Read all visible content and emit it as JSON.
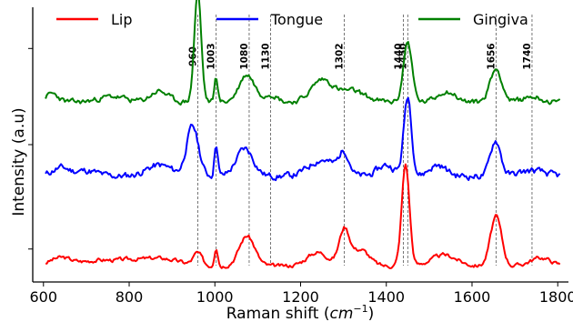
{
  "chart_data": {
    "type": "line",
    "xlabel": "Raman shift",
    "xlabel_unit_base": "cm",
    "xlabel_unit_exp": "−1",
    "ylabel": "Intensity (a.u)",
    "xlim": [
      575,
      1825
    ],
    "xticks": [
      600,
      800,
      1000,
      1200,
      1400,
      1600,
      1800
    ],
    "ylim": [
      0,
      1
    ],
    "y_ticks_unlabeled": true,
    "grid": false,
    "legend_position": "top",
    "peak_lines": [
      {
        "x": 960,
        "label": "960"
      },
      {
        "x": 1003,
        "label": "1003"
      },
      {
        "x": 1080,
        "label": "1080"
      },
      {
        "x": 1130,
        "label": "1130"
      },
      {
        "x": 1302,
        "label": "1302"
      },
      {
        "x": 1440,
        "label": "1440"
      },
      {
        "x": 1450,
        "label": "1450"
      },
      {
        "x": 1656,
        "label": "1656"
      },
      {
        "x": 1740,
        "label": "1740"
      }
    ],
    "series": [
      {
        "name": "Lip",
        "color": "#ff0000",
        "baseline": 0.058,
        "noise": 0.012,
        "seed": 3,
        "bumps": [
          [
            640,
            25,
            0.03
          ],
          [
            720,
            35,
            0.018
          ],
          [
            800,
            40,
            0.02
          ],
          [
            880,
            40,
            0.025
          ],
          [
            960,
            10,
            0.045
          ],
          [
            1003,
            4,
            0.07
          ],
          [
            1075,
            18,
            0.11
          ],
          [
            1240,
            25,
            0.05
          ],
          [
            1302,
            12,
            0.13
          ],
          [
            1340,
            20,
            0.06
          ],
          [
            1445,
            9,
            0.37
          ],
          [
            1535,
            30,
            0.04
          ],
          [
            1656,
            13,
            0.18
          ],
          [
            1760,
            25,
            0.03
          ]
        ]
      },
      {
        "name": "Tongue",
        "color": "#0000ff",
        "baseline": 0.385,
        "noise": 0.02,
        "seed": 11,
        "bumps": [
          [
            640,
            20,
            0.03
          ],
          [
            700,
            25,
            0.02
          ],
          [
            870,
            30,
            0.04
          ],
          [
            948,
            14,
            0.18
          ],
          [
            1003,
            4,
            0.12
          ],
          [
            1070,
            20,
            0.1
          ],
          [
            1250,
            30,
            0.06
          ],
          [
            1302,
            12,
            0.08
          ],
          [
            1400,
            20,
            0.04
          ],
          [
            1450,
            9,
            0.29
          ],
          [
            1520,
            20,
            0.04
          ],
          [
            1655,
            12,
            0.13
          ],
          [
            1740,
            30,
            0.02
          ]
        ]
      },
      {
        "name": "Gingiva",
        "color": "#008000",
        "baseline": 0.655,
        "noise": 0.016,
        "seed": 23,
        "bumps": [
          [
            620,
            15,
            0.03
          ],
          [
            760,
            30,
            0.02
          ],
          [
            870,
            20,
            0.04
          ],
          [
            960,
            8,
            0.4
          ],
          [
            1003,
            4,
            0.09
          ],
          [
            1075,
            18,
            0.1
          ],
          [
            1130,
            15,
            0.03
          ],
          [
            1250,
            25,
            0.08
          ],
          [
            1320,
            30,
            0.04
          ],
          [
            1450,
            10,
            0.22
          ],
          [
            1540,
            20,
            0.04
          ],
          [
            1656,
            14,
            0.12
          ],
          [
            1740,
            20,
            0.02
          ]
        ]
      }
    ]
  }
}
